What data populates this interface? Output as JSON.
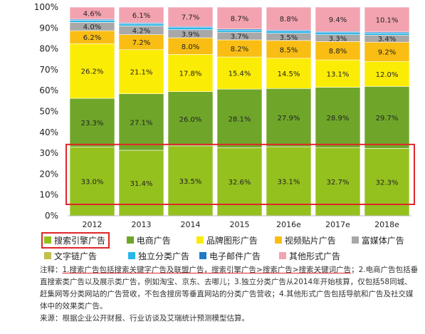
{
  "chart_data": {
    "type": "bar",
    "stacked": true,
    "percent": true,
    "categories": [
      "2012",
      "2013",
      "2014",
      "2015",
      "2016e",
      "2017e",
      "2018e"
    ],
    "y_ticks": [
      "0%",
      "10%",
      "20%",
      "30%",
      "40%",
      "50%",
      "60%",
      "70%",
      "80%",
      "90%",
      "100%"
    ],
    "ylim": [
      0,
      100
    ],
    "series": [
      {
        "name": "搜索引擎广告",
        "color": "#95c11f",
        "values": [
          33.0,
          31.4,
          33.5,
          32.6,
          33.1,
          32.7,
          32.3
        ],
        "labels": [
          "33.0%",
          "31.4%",
          "33.5%",
          "32.6%",
          "33.1%",
          "32.7%",
          "32.3%"
        ]
      },
      {
        "name": "电商广告",
        "color": "#6fa62a",
        "values": [
          23.3,
          27.1,
          26.0,
          28.1,
          27.9,
          28.9,
          29.7
        ],
        "labels": [
          "23.3%",
          "27.1%",
          "26.0%",
          "28.1%",
          "27.9%",
          "28.9%",
          "29.7%"
        ]
      },
      {
        "name": "品牌图形广告",
        "color": "#fbec06",
        "values": [
          26.2,
          21.1,
          17.8,
          15.4,
          14.5,
          13.1,
          12.0
        ],
        "labels": [
          "26.2%",
          "21.1%",
          "17.8%",
          "15.4%",
          "14.5%",
          "13.1%",
          "12.0%"
        ]
      },
      {
        "name": "视频贴片广告",
        "color": "#f9bd13",
        "values": [
          6.2,
          7.2,
          8.0,
          8.2,
          8.5,
          8.8,
          9.2
        ],
        "labels": [
          "6.2%",
          "7.2%",
          "8.0%",
          "8.2%",
          "8.5%",
          "8.8%",
          "9.2%"
        ]
      },
      {
        "name": "富媒体广告",
        "color": "#a8a8a8",
        "values": [
          4.0,
          4.2,
          3.9,
          3.7,
          3.5,
          3.3,
          3.4
        ],
        "labels": [
          "4.0%",
          "4.2%",
          "3.9%",
          "3.7%",
          "3.5%",
          "3.3%",
          "3.4%"
        ]
      },
      {
        "name": "文字链广告",
        "color": "#bfc14a",
        "values": [
          0.0,
          0.0,
          0.0,
          0.0,
          0.0,
          0.0,
          0.0
        ],
        "labels": []
      },
      {
        "name": "独立分类广告",
        "color": "#29b6e8",
        "values": [
          1.0,
          1.0,
          1.0,
          1.0,
          1.0,
          1.0,
          1.0
        ],
        "labels": []
      },
      {
        "name": "电子邮件广告",
        "color": "#1f78c8",
        "values": [
          0.5,
          0.5,
          0.5,
          0.5,
          0.5,
          0.5,
          0.5
        ],
        "labels": []
      },
      {
        "name": "其他形式广告",
        "color": "#f3a3b0",
        "values": [
          4.6,
          6.1,
          7.7,
          8.7,
          8.8,
          9.4,
          10.1
        ],
        "labels": [
          "4.6%",
          "6.1%",
          "7.7%",
          "8.7%",
          "8.8%",
          "9.4%",
          "10.1%"
        ]
      }
    ],
    "highlight": {
      "series": "搜索引擎广告",
      "color": "#e0262a"
    },
    "grid": false,
    "legend_position": "bottom"
  },
  "legend": {
    "row1": [
      "搜索引擎广告",
      "电商广告",
      "品牌图形广告",
      "视频贴片广告",
      "富媒体广告"
    ],
    "row2": [
      "文字链广告",
      "独立分类广告",
      "电子邮件广告",
      "其他形式广告"
    ]
  },
  "notes": {
    "line1_prefix": "注释：",
    "line1_underlined": "1.搜索广告包括搜索关键字广告及联盟广告，搜索引擎广告>搜索广告>搜索关键词广告",
    "line1_rest": "；2.电商广告包括垂直搜索类广告以及展示类广告，例如淘宝、京东、去哪儿；3.独立分类广告从2014年开始核算，仅包括58同城、赶集网等分类网站的广告营收，不包含搜房等垂直网站的分类广告营收；4.其他形式广告包括导航和广告及社交媒体中的效果类广告。",
    "source": "来源：根据企业公开财报、行业访谈及艾瑞统计预测模型估算。"
  }
}
